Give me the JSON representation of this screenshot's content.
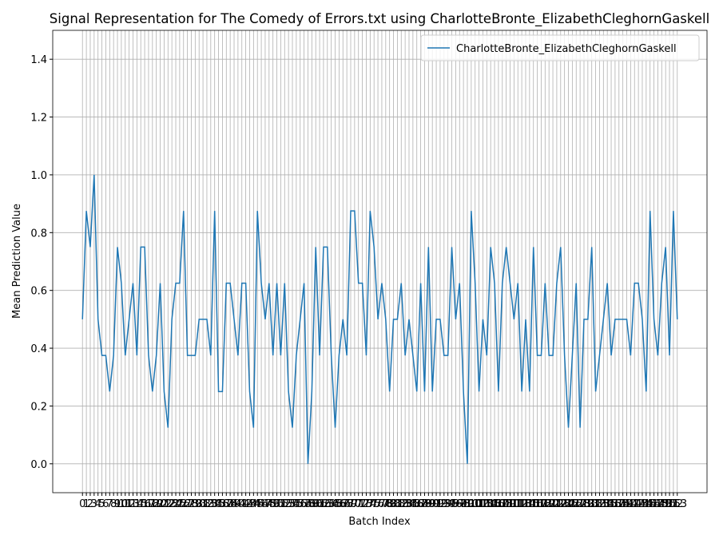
{
  "chart_data": {
    "type": "line",
    "title": "Signal Representation for The Comedy of Errors.txt using CharlotteBronte_ElizabethCleghornGaskell",
    "xlabel": "Batch Index",
    "ylabel": "Mean Prediction Value",
    "x": [
      0,
      1,
      2,
      3,
      4,
      5,
      6,
      7,
      8,
      9,
      10,
      11,
      12,
      13,
      14,
      15,
      16,
      17,
      18,
      19,
      20,
      21,
      22,
      23,
      24,
      25,
      26,
      27,
      28,
      29,
      30,
      31,
      32,
      33,
      34,
      35,
      36,
      37,
      38,
      39,
      40,
      41,
      42,
      43,
      44,
      45,
      46,
      47,
      48,
      49,
      50,
      51,
      52,
      53,
      54,
      55,
      56,
      57,
      58,
      59,
      60,
      61,
      62,
      63,
      64,
      65,
      66,
      67,
      68,
      69,
      70,
      71,
      72,
      73,
      74,
      75,
      76,
      77,
      78,
      79,
      80,
      81,
      82,
      83,
      84,
      85,
      86,
      87,
      88,
      89,
      90,
      91,
      92,
      93,
      94,
      95,
      96,
      97,
      98,
      99,
      100,
      101,
      102,
      103,
      104,
      105,
      106,
      107,
      108,
      109,
      110,
      111,
      112,
      113,
      114,
      115,
      116,
      117,
      118,
      119,
      120,
      121,
      122,
      123,
      124,
      125,
      126,
      127,
      128,
      129,
      130,
      131,
      132,
      133,
      134,
      135,
      136,
      137,
      138,
      139,
      140,
      141,
      142,
      143,
      144,
      145,
      146,
      147,
      148,
      149,
      150,
      151,
      152,
      153
    ],
    "series": [
      {
        "name": "CharlotteBronte_ElizabethCleghornGaskell",
        "color": "#1f77b4",
        "values": [
          0.5,
          0.875,
          0.75,
          1,
          0.5,
          0.375,
          0.375,
          0.25,
          0.375,
          0.75,
          0.625,
          0.375,
          0.5,
          0.625,
          0.375,
          0.75,
          0.75,
          0.375,
          0.25,
          0.375,
          0.625,
          0.25,
          0.125,
          0.5,
          0.625,
          0.625,
          0.875,
          0.375,
          0.375,
          0.375,
          0.5,
          0.5,
          0.5,
          0.375,
          0.875,
          0.25,
          0.25,
          0.625,
          0.625,
          0.5,
          0.375,
          0.625,
          0.625,
          0.25,
          0.125,
          0.875,
          0.625,
          0.5,
          0.625,
          0.375,
          0.625,
          0.375,
          0.625,
          0.25,
          0.125,
          0.375,
          0.5,
          0.625,
          0,
          0.25,
          0.75,
          0.375,
          0.75,
          0.75,
          0.375,
          0.125,
          0.375,
          0.5,
          0.375,
          0.875,
          0.875,
          0.625,
          0.625,
          0.375,
          0.875,
          0.75,
          0.5,
          0.625,
          0.5,
          0.25,
          0.5,
          0.5,
          0.625,
          0.375,
          0.5,
          0.375,
          0.25,
          0.625,
          0.25,
          0.75,
          0.25,
          0.5,
          0.5,
          0.375,
          0.375,
          0.75,
          0.5,
          0.625,
          0.25,
          0,
          0.875,
          0.625,
          0.25,
          0.5,
          0.375,
          0.75,
          0.625,
          0.25,
          0.625,
          0.75,
          0.625,
          0.5,
          0.625,
          0.25,
          0.5,
          0.25,
          0.75,
          0.375,
          0.375,
          0.625,
          0.375,
          0.375,
          0.625,
          0.75,
          0.375,
          0.125,
          0.375,
          0.625,
          0.125,
          0.5,
          0.5,
          0.75,
          0.25,
          0.375,
          0.5,
          0.625,
          0.375,
          0.5,
          0.5,
          0.5,
          0.5,
          0.375,
          0.625,
          0.625,
          0.5,
          0.25,
          0.875,
          0.5,
          0.375,
          0.625,
          0.75,
          0.375,
          0.875,
          0.5
        ]
      }
    ],
    "xlim": [
      -7.65,
      160.65
    ],
    "xticks": [
      0,
      1,
      2,
      3,
      4,
      5,
      6,
      7,
      8,
      9,
      10,
      11,
      12,
      13,
      14,
      15,
      16,
      17,
      18,
      19,
      20,
      21,
      22,
      23,
      24,
      25,
      26,
      27,
      28,
      29,
      30,
      31,
      32,
      33,
      34,
      35,
      36,
      37,
      38,
      39,
      40,
      41,
      42,
      43,
      44,
      45,
      46,
      47,
      48,
      49,
      50,
      51,
      52,
      53,
      54,
      55,
      56,
      57,
      58,
      59,
      60,
      61,
      62,
      63,
      64,
      65,
      66,
      67,
      68,
      69,
      70,
      71,
      72,
      73,
      74,
      75,
      76,
      77,
      78,
      79,
      80,
      81,
      82,
      83,
      84,
      85,
      86,
      87,
      88,
      89,
      90,
      91,
      92,
      93,
      94,
      95,
      96,
      97,
      98,
      99,
      100,
      101,
      102,
      103,
      104,
      105,
      106,
      107,
      108,
      109,
      110,
      111,
      112,
      113,
      114,
      115,
      116,
      117,
      118,
      119,
      120,
      121,
      122,
      123,
      124,
      125,
      126,
      127,
      128,
      129,
      130,
      131,
      132,
      133,
      134,
      135,
      136,
      137,
      138,
      139,
      140,
      141,
      142,
      143,
      144,
      145,
      146,
      147,
      148,
      149,
      150,
      151,
      152,
      153
    ],
    "ylim": [
      -0.1,
      1.5
    ],
    "yticks": [
      {
        "value": 0,
        "label": "0.0"
      },
      0.2,
      0.4,
      0.6,
      0.8,
      {
        "value": 1,
        "label": "1.0"
      },
      1.2,
      1.4
    ],
    "grid": true,
    "legend": "upper right"
  }
}
